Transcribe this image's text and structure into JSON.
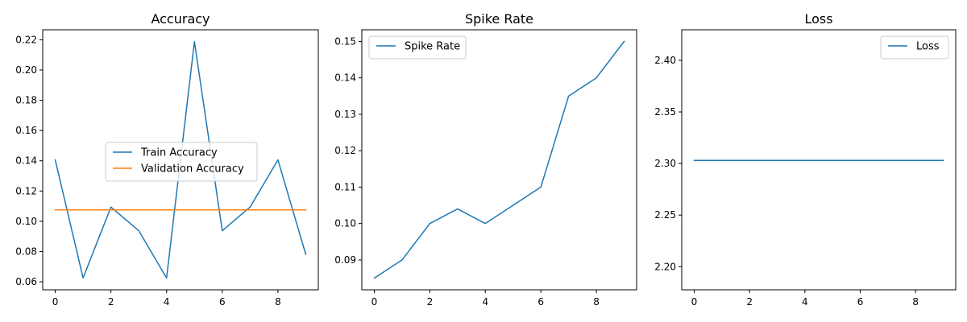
{
  "chart_data": [
    {
      "type": "line",
      "title": "Accuracy",
      "xlabel": "",
      "ylabel": "",
      "x": [
        0,
        1,
        2,
        3,
        4,
        5,
        6,
        7,
        8,
        9
      ],
      "xlim": [
        -0.45,
        9.45
      ],
      "ylim": [
        0.0547,
        0.2266
      ],
      "xticks": [
        0,
        2,
        4,
        6,
        8
      ],
      "yticks": [
        0.06,
        0.08,
        0.1,
        0.12,
        0.14,
        0.16,
        0.18,
        0.2,
        0.22
      ],
      "ytick_decimals": 2,
      "grid": false,
      "legend_position": "center-left",
      "series": [
        {
          "name": "Train Accuracy",
          "color": "#1f77b4",
          "values": [
            0.1406,
            0.0625,
            0.1094,
            0.0938,
            0.0625,
            0.2188,
            0.0938,
            0.1094,
            0.1406,
            0.0781
          ]
        },
        {
          "name": "Validation Accuracy",
          "color": "#ff7f0e",
          "values": [
            0.1075,
            0.1075,
            0.1075,
            0.1075,
            0.1075,
            0.1075,
            0.1075,
            0.1075,
            0.1075,
            0.1075
          ]
        }
      ]
    },
    {
      "type": "line",
      "title": "Spike Rate",
      "xlabel": "",
      "ylabel": "",
      "x": [
        0,
        1,
        2,
        3,
        4,
        5,
        6,
        7,
        8,
        9
      ],
      "xlim": [
        -0.45,
        9.45
      ],
      "ylim": [
        0.0818,
        0.1532
      ],
      "xticks": [
        0,
        2,
        4,
        6,
        8
      ],
      "yticks": [
        0.09,
        0.1,
        0.11,
        0.12,
        0.13,
        0.14,
        0.15
      ],
      "ytick_decimals": 2,
      "grid": false,
      "legend_position": "upper-left",
      "series": [
        {
          "name": "Spike Rate",
          "color": "#1f77b4",
          "values": [
            0.085,
            0.09,
            0.1,
            0.104,
            0.1,
            0.105,
            0.11,
            0.135,
            0.14,
            0.15
          ]
        }
      ]
    },
    {
      "type": "line",
      "title": "Loss",
      "xlabel": "",
      "ylabel": "",
      "x": [
        0,
        1,
        2,
        3,
        4,
        5,
        6,
        7,
        8,
        9
      ],
      "xlim": [
        -0.45,
        9.45
      ],
      "ylim": [
        2.1776,
        2.4296
      ],
      "xticks": [
        0,
        2,
        4,
        6,
        8
      ],
      "yticks": [
        2.2,
        2.25,
        2.3,
        2.35,
        2.4
      ],
      "ytick_decimals": 2,
      "grid": false,
      "legend_position": "upper-right",
      "series": [
        {
          "name": "Loss",
          "color": "#1f77b4",
          "values": [
            2.303,
            2.303,
            2.303,
            2.303,
            2.303,
            2.303,
            2.303,
            2.303,
            2.303,
            2.303
          ]
        }
      ]
    }
  ]
}
